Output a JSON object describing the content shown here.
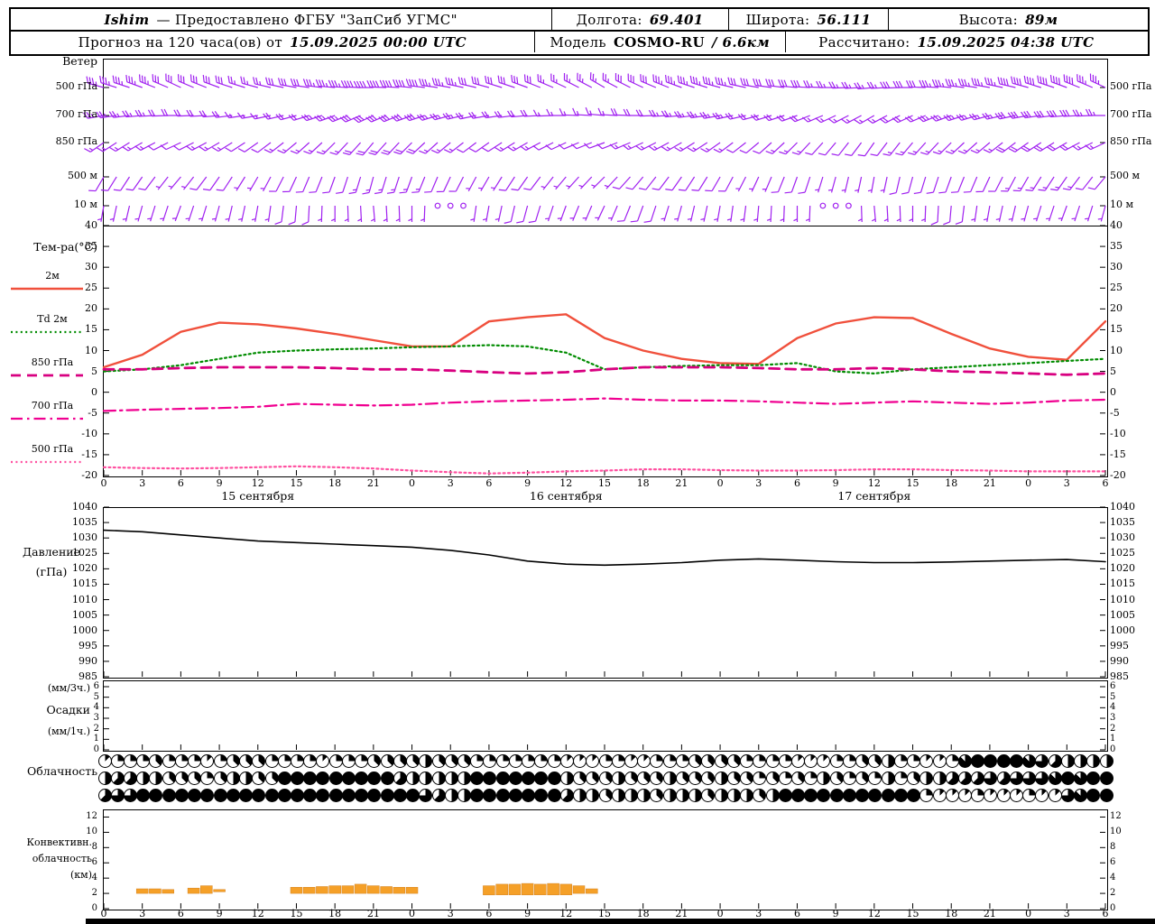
{
  "header": {
    "station": "Ishim",
    "provider": "— Предоставлено ФГБУ \"ЗапСиб УГМС\"",
    "lon_label": "Долгота:",
    "lon": "69.401",
    "lat_label": "Широта:",
    "lat": "56.111",
    "alt_label": "Высота:",
    "alt": "89м",
    "forecast_label": "Прогноз на 120 часа(ов) от",
    "forecast_time": "15.09.2025 00:00 UTC",
    "model_label": "Модель",
    "model_name": "COSMO-RU",
    "model_res": "/ 6.6км",
    "calc_label": "Рассчитано:",
    "calc_time": "15.09.2025 04:38 UTC"
  },
  "panels": {
    "wind": {
      "title": "Ветер",
      "levels": [
        "500 гПа",
        "700 гПа",
        "850 гПа",
        "500 м",
        "10 м"
      ]
    },
    "temperature": {
      "title": "Тем-ра(°C)"
    },
    "pressure": {
      "line1": "Давление",
      "line2": "(гПа)"
    },
    "precipitation": {
      "unit_3h": "(мм/3ч.)",
      "title": "Осадки",
      "unit_1h": "(мм/1ч.)"
    },
    "cloudiness": {
      "title": "Облачность"
    },
    "convective": {
      "line1": "Конвективн.",
      "line2": "облачность",
      "line3": "(км)"
    }
  },
  "colors": {
    "wind_barb": "#a020f0",
    "convective_fill": "#f5a028",
    "axis": "#000000"
  },
  "chart_data": [
    {
      "id": "time_axis",
      "type": "table",
      "total_hours": 78,
      "tick_step_hours": 3,
      "tick_labels": [
        "0",
        "3",
        "6",
        "9",
        "12",
        "15",
        "18",
        "21",
        "0",
        "3",
        "6",
        "9",
        "12",
        "15",
        "18",
        "21",
        "0",
        "3",
        "6",
        "9",
        "12",
        "15",
        "18",
        "21",
        "0",
        "3",
        "6"
      ],
      "date_labels": [
        {
          "text": "15 сентября",
          "hour": 12
        },
        {
          "text": "16 сентября",
          "hour": 36
        },
        {
          "text": "17 сентября",
          "hour": 60
        }
      ]
    },
    {
      "id": "wind",
      "type": "scatter",
      "subtype": "wind-barbs",
      "speed_unit": "kt",
      "step_hours": 3,
      "levels": [
        {
          "name": "500 гПа",
          "dir_deg": [
            285,
            290,
            295,
            290,
            285,
            280,
            275,
            270,
            275,
            280,
            285,
            290,
            295,
            300,
            295,
            290,
            285,
            280,
            275,
            270,
            265,
            270,
            275,
            280,
            285,
            290,
            295
          ],
          "speed_kt": [
            35,
            35,
            30,
            30,
            25,
            30,
            35,
            40,
            40,
            35,
            30,
            30,
            25,
            25,
            30,
            35,
            35,
            30,
            30,
            25,
            25,
            30,
            35,
            35,
            40,
            40,
            35
          ]
        },
        {
          "name": "700 гПа",
          "dir_deg": [
            260,
            265,
            270,
            265,
            260,
            255,
            250,
            245,
            250,
            255,
            260,
            265,
            270,
            275,
            270,
            265,
            260,
            255,
            250,
            245,
            240,
            245,
            250,
            255,
            260,
            265,
            270
          ],
          "speed_kt": [
            25,
            25,
            20,
            20,
            15,
            20,
            25,
            30,
            30,
            25,
            20,
            20,
            15,
            15,
            20,
            25,
            25,
            20,
            20,
            15,
            15,
            20,
            25,
            25,
            30,
            30,
            25
          ]
        },
        {
          "name": "850 гПа",
          "dir_deg": [
            235,
            240,
            245,
            240,
            235,
            230,
            225,
            220,
            225,
            230,
            235,
            240,
            245,
            250,
            245,
            240,
            235,
            230,
            225,
            220,
            215,
            220,
            225,
            230,
            235,
            240,
            245
          ],
          "speed_kt": [
            15,
            15,
            10,
            15,
            10,
            15,
            15,
            20,
            20,
            15,
            10,
            15,
            10,
            10,
            15,
            15,
            15,
            10,
            15,
            10,
            10,
            15,
            15,
            15,
            20,
            20,
            15
          ]
        },
        {
          "name": "500 м",
          "dir_deg": [
            210,
            215,
            220,
            215,
            210,
            205,
            200,
            195,
            200,
            205,
            210,
            215,
            220,
            225,
            220,
            215,
            210,
            205,
            200,
            195,
            190,
            195,
            200,
            205,
            210,
            215,
            220
          ],
          "speed_kt": [
            10,
            10,
            5,
            10,
            5,
            10,
            10,
            15,
            15,
            10,
            5,
            10,
            5,
            5,
            10,
            10,
            10,
            5,
            10,
            5,
            5,
            10,
            10,
            10,
            15,
            15,
            10
          ]
        },
        {
          "name": "10 м",
          "dir_deg": [
            190,
            195,
            200,
            195,
            190,
            185,
            180,
            175,
            180,
            185,
            190,
            195,
            200,
            205,
            200,
            195,
            190,
            185,
            180,
            185,
            175,
            180,
            185,
            190,
            195,
            200,
            195
          ],
          "speed_kt": [
            5,
            5,
            5,
            5,
            5,
            10,
            5,
            5,
            5,
            0,
            5,
            10,
            5,
            5,
            10,
            5,
            5,
            5,
            5,
            0,
            5,
            5,
            10,
            5,
            5,
            5,
            5
          ]
        }
      ]
    },
    {
      "id": "temperature",
      "type": "line",
      "ylabel": "°C",
      "ylim": [
        -20,
        40
      ],
      "yticks": [
        40,
        35,
        30,
        25,
        20,
        15,
        10,
        5,
        0,
        -5,
        -10,
        -15,
        -20
      ],
      "step_hours": 3,
      "series": [
        {
          "name": "2м",
          "color": "#f0503c",
          "line_style": "solid",
          "values": [
            6,
            9,
            14.5,
            16.7,
            16.3,
            15.3,
            14,
            12.5,
            11,
            11,
            17,
            18,
            18.7,
            13,
            10,
            8,
            7,
            6.8,
            13,
            16.5,
            18,
            17.8,
            14,
            10.5,
            8.5,
            7.8,
            17
          ]
        },
        {
          "name": "Td 2м",
          "color": "#008c00",
          "line_style": "dotted",
          "values": [
            5,
            5.5,
            6.5,
            8,
            9.5,
            10,
            10.3,
            10.5,
            10.8,
            11,
            11.3,
            11,
            9.5,
            5.5,
            6,
            6.3,
            6.5,
            6.5,
            7,
            5,
            4.5,
            5.5,
            6,
            6.5,
            7,
            7.5,
            8
          ]
        },
        {
          "name": "850 гПа",
          "color": "#d80080",
          "line_style": "dashed",
          "values": [
            5.5,
            5.5,
            5.8,
            6,
            6,
            6,
            5.8,
            5.5,
            5.5,
            5.2,
            4.8,
            4.5,
            4.8,
            5.5,
            6,
            6,
            6,
            5.8,
            5.5,
            5.5,
            5.8,
            5.5,
            5,
            4.8,
            4.5,
            4.2,
            4.5
          ]
        },
        {
          "name": "700 гПа",
          "color": "#f00090",
          "line_style": "dashdot",
          "values": [
            -4.5,
            -4.2,
            -4,
            -3.8,
            -3.5,
            -2.8,
            -3,
            -3.2,
            -3,
            -2.5,
            -2.2,
            -2,
            -1.8,
            -1.5,
            -1.8,
            -2,
            -2,
            -2.2,
            -2.5,
            -2.8,
            -2.5,
            -2.2,
            -2.5,
            -2.8,
            -2.5,
            -2,
            -1.8
          ]
        },
        {
          "name": "500 гПа",
          "color": "#ff50a0",
          "line_style": "dotted",
          "values": [
            -18,
            -18.2,
            -18.3,
            -18.2,
            -18,
            -17.8,
            -18,
            -18.3,
            -18.8,
            -19.2,
            -19.5,
            -19.3,
            -19,
            -18.8,
            -18.5,
            -18.5,
            -18.7,
            -18.8,
            -18.8,
            -18.7,
            -18.5,
            -18.5,
            -18.7,
            -18.8,
            -19,
            -19,
            -19
          ]
        }
      ]
    },
    {
      "id": "pressure",
      "type": "line",
      "ylabel": "гПа",
      "ylim": [
        985,
        1040
      ],
      "yticks": [
        1040,
        1035,
        1030,
        1025,
        1020,
        1015,
        1010,
        1005,
        1000,
        995,
        990,
        985
      ],
      "step_hours": 3,
      "color": "#000000",
      "values": [
        1032.5,
        1032,
        1031,
        1030,
        1029,
        1028.5,
        1028,
        1027.5,
        1027,
        1026,
        1024.5,
        1022.5,
        1021.5,
        1021.2,
        1021.5,
        1022,
        1022.8,
        1023.2,
        1022.8,
        1022.3,
        1022,
        1022,
        1022.2,
        1022.5,
        1022.8,
        1023,
        1022.3
      ]
    },
    {
      "id": "precipitation",
      "type": "bar",
      "ylabel": "мм",
      "ylim": [
        0,
        6
      ],
      "yticks": [
        6,
        5,
        4,
        3,
        2,
        1,
        0
      ],
      "step_hours": 3,
      "values_mm": [
        0,
        0,
        0,
        0,
        0,
        0,
        0,
        0,
        0,
        0,
        0,
        0,
        0,
        0,
        0,
        0,
        0,
        0,
        0,
        0,
        0,
        0,
        0,
        0,
        0,
        0,
        0
      ]
    },
    {
      "id": "cloudiness",
      "type": "heatmap",
      "subtype": "cloud-cover-octas",
      "octas_scale": "0=ясно, 8=сплошная",
      "hourly": true,
      "rows": [
        {
          "octas": "1222322212333222212223333433322222221112211222333322221112233422112788887654444"
        },
        {
          "octas": "4554433323443388888888854444488888884333433343334332323243232423445556566678788"
        },
        {
          "octas": "5668888888888888888888888654488888885443444344434443488888888888211121112116788"
        }
      ]
    },
    {
      "id": "convective",
      "type": "bar",
      "subtype": "floating-bars",
      "unit": "км",
      "ylim": [
        0,
        13
      ],
      "yticks": [
        12,
        10,
        8,
        6,
        4,
        2,
        0
      ],
      "bars": [
        {
          "h": 3,
          "base": 2,
          "top": 2.6
        },
        {
          "h": 4,
          "base": 2,
          "top": 2.6
        },
        {
          "h": 5,
          "base": 2,
          "top": 2.5
        },
        {
          "h": 7,
          "base": 2,
          "top": 2.7
        },
        {
          "h": 8,
          "base": 2,
          "top": 3
        },
        {
          "h": 9,
          "base": 2.2,
          "top": 2.5
        },
        {
          "h": 15,
          "base": 2,
          "top": 2.8
        },
        {
          "h": 16,
          "base": 2,
          "top": 2.8
        },
        {
          "h": 17,
          "base": 2,
          "top": 2.9
        },
        {
          "h": 18,
          "base": 2,
          "top": 3
        },
        {
          "h": 19,
          "base": 2,
          "top": 3
        },
        {
          "h": 20,
          "base": 2,
          "top": 3.2
        },
        {
          "h": 21,
          "base": 2,
          "top": 3
        },
        {
          "h": 22,
          "base": 2,
          "top": 2.9
        },
        {
          "h": 23,
          "base": 2,
          "top": 2.8
        },
        {
          "h": 24,
          "base": 2,
          "top": 2.8
        },
        {
          "h": 30,
          "base": 1.8,
          "top": 3
        },
        {
          "h": 31,
          "base": 1.8,
          "top": 3.2
        },
        {
          "h": 32,
          "base": 1.8,
          "top": 3.2
        },
        {
          "h": 33,
          "base": 1.8,
          "top": 3.3
        },
        {
          "h": 34,
          "base": 1.8,
          "top": 3.2
        },
        {
          "h": 35,
          "base": 1.8,
          "top": 3.3
        },
        {
          "h": 36,
          "base": 1.8,
          "top": 3.2
        },
        {
          "h": 37,
          "base": 2,
          "top": 3
        },
        {
          "h": 38,
          "base": 2,
          "top": 2.6
        }
      ]
    }
  ]
}
